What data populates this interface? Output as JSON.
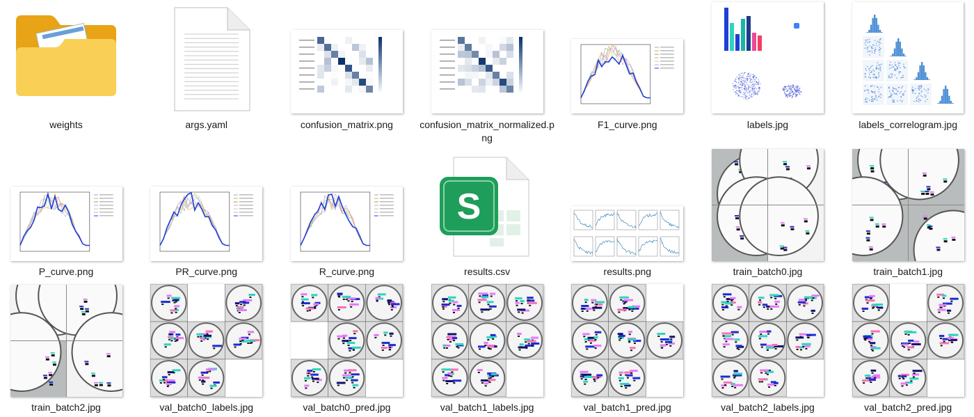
{
  "colors": {
    "accent_blue": "#1f3fd8",
    "matrix_blue": "#08306b",
    "csv_green": "#1e9e5a",
    "folder_yellow": "#f7c948"
  },
  "files": [
    {
      "name": "weights",
      "kind": "folder",
      "icon": "folder-icon"
    },
    {
      "name": "args.yaml",
      "kind": "document",
      "icon": "document-icon"
    },
    {
      "name": "confusion_matrix.png",
      "kind": "matrix"
    },
    {
      "name": "confusion_matrix_normalized.png",
      "kind": "matrix"
    },
    {
      "name": "F1_curve.png",
      "kind": "curve"
    },
    {
      "name": "labels.jpg",
      "kind": "labels"
    },
    {
      "name": "labels_correlogram.jpg",
      "kind": "correlogram"
    },
    {
      "name": "P_curve.png",
      "kind": "curve"
    },
    {
      "name": "PR_curve.png",
      "kind": "curve"
    },
    {
      "name": "R_curve.png",
      "kind": "curve"
    },
    {
      "name": "results.csv",
      "kind": "spreadsheet",
      "icon": "spreadsheet-icon"
    },
    {
      "name": "results.png",
      "kind": "results"
    },
    {
      "name": "train_batch0.jpg",
      "kind": "train"
    },
    {
      "name": "train_batch1.jpg",
      "kind": "train"
    },
    {
      "name": "train_batch2.jpg",
      "kind": "train"
    },
    {
      "name": "val_batch0_labels.jpg",
      "kind": "val"
    },
    {
      "name": "val_batch0_pred.jpg",
      "kind": "val"
    },
    {
      "name": "val_batch1_labels.jpg",
      "kind": "val"
    },
    {
      "name": "val_batch1_pred.jpg",
      "kind": "val"
    },
    {
      "name": "val_batch2_labels.jpg",
      "kind": "val"
    },
    {
      "name": "val_batch2_pred.jpg",
      "kind": "val"
    }
  ]
}
